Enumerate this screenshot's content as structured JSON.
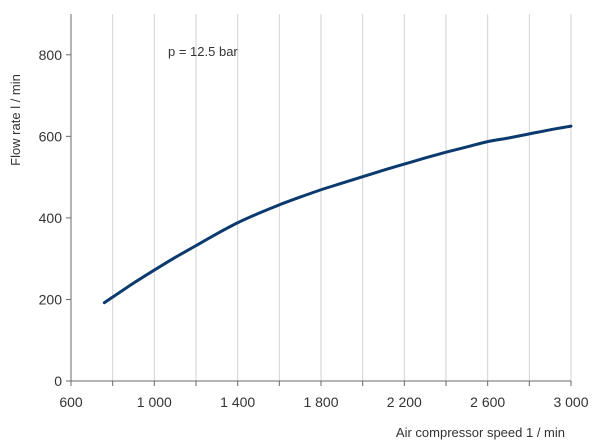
{
  "chart_data": {
    "type": "line",
    "title": "",
    "xlabel": "Air compressor speed 1 / min",
    "ylabel": "Flow rate l / min",
    "xlim": [
      600,
      3000
    ],
    "ylim": [
      0,
      900
    ],
    "x_ticks": [
      600,
      1000,
      1400,
      1800,
      2200,
      2600,
      3000
    ],
    "x_tick_labels": [
      "600",
      "1 000",
      "1 400",
      "1 800",
      "2 200",
      "2 600",
      "3 000"
    ],
    "x_minor_gridlines": [
      800,
      1200,
      1600,
      2000,
      2400,
      2800
    ],
    "y_ticks": [
      0,
      200,
      400,
      600,
      800
    ],
    "y_tick_labels": [
      "0",
      "200",
      "400",
      "600",
      "800"
    ],
    "grid": "vertical",
    "annotation": "p = 12.5 bar",
    "series": [
      {
        "color": "#0b3a6e",
        "x": [
          760,
          900,
          1000,
          1100,
          1200,
          1300,
          1400,
          1500,
          1600,
          1700,
          1800,
          1900,
          2000,
          2100,
          2200,
          2300,
          2400,
          2500,
          2600,
          2700,
          2800,
          2900,
          3000
        ],
        "y": [
          192,
          240,
          272,
          303,
          332,
          361,
          388,
          411,
          432,
          451,
          469,
          485,
          501,
          517,
          532,
          547,
          561,
          574,
          587,
          596,
          606,
          616,
          625
        ]
      }
    ]
  }
}
